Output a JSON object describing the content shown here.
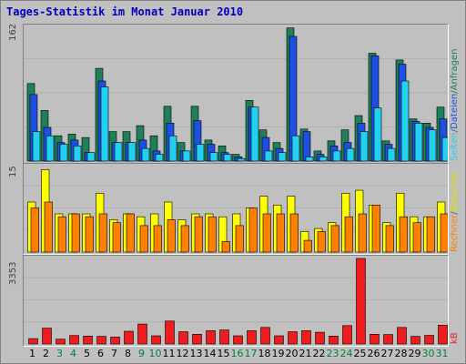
{
  "title": "Tages-Statistik im Monat Januar 2010",
  "legend": {
    "panel1": [
      {
        "label": "Anfragen",
        "color": "#1f7f57"
      },
      {
        "label": "Dateien",
        "color": "#1f4fe0"
      },
      {
        "label": "Seiten",
        "color": "#22d0f0"
      }
    ],
    "panel2": [
      {
        "label": "Besuche",
        "color": "#ffff00"
      },
      {
        "label": "Rechner",
        "color": "#ff8000"
      }
    ],
    "panel3": [
      {
        "label": "kB",
        "color": "#ee1c1c"
      }
    ]
  },
  "colors": {
    "background": "#c0c0c0",
    "title": "#0000c0",
    "weekday_label": "#000000",
    "weekend_label": "#008040"
  },
  "chart_data": [
    {
      "type": "bar",
      "title": "Tages-Statistik im Monat Januar 2010",
      "categories": [
        "1",
        "2",
        "3",
        "4",
        "5",
        "6",
        "7",
        "8",
        "9",
        "10",
        "11",
        "12",
        "13",
        "14",
        "15",
        "16",
        "17",
        "18",
        "19",
        "20",
        "21",
        "22",
        "23",
        "24",
        "25",
        "26",
        "27",
        "28",
        "29",
        "30",
        "31"
      ],
      "weekend": [
        false,
        false,
        true,
        true,
        false,
        false,
        false,
        false,
        true,
        true,
        false,
        false,
        false,
        false,
        false,
        true,
        true,
        false,
        false,
        false,
        false,
        false,
        true,
        true,
        false,
        false,
        false,
        false,
        false,
        true,
        true
      ],
      "ymax_label": "162",
      "ylim": [
        0,
        162
      ],
      "series": [
        {
          "name": "Anfragen",
          "values": [
            92,
            60,
            30,
            32,
            28,
            110,
            35,
            35,
            42,
            30,
            65,
            22,
            65,
            25,
            18,
            8,
            72,
            37,
            22,
            158,
            38,
            12,
            24,
            37,
            54,
            128,
            24,
            120,
            50,
            45,
            64
          ]
        },
        {
          "name": "Dateien",
          "values": [
            79,
            40,
            22,
            25,
            10,
            95,
            22,
            22,
            25,
            12,
            45,
            12,
            48,
            20,
            10,
            5,
            64,
            28,
            15,
            148,
            35,
            8,
            18,
            22,
            45,
            125,
            20,
            115,
            47,
            40,
            50
          ]
        },
        {
          "name": "Seiten",
          "values": [
            35,
            30,
            20,
            18,
            10,
            88,
            22,
            22,
            15,
            8,
            30,
            12,
            20,
            10,
            8,
            3,
            64,
            12,
            10,
            30,
            5,
            5,
            12,
            15,
            35,
            63,
            15,
            95,
            45,
            37,
            28
          ]
        }
      ]
    },
    {
      "type": "bar",
      "categories": [
        "1",
        "2",
        "3",
        "4",
        "5",
        "6",
        "7",
        "8",
        "9",
        "10",
        "11",
        "12",
        "13",
        "14",
        "15",
        "16",
        "17",
        "18",
        "19",
        "20",
        "21",
        "22",
        "23",
        "24",
        "25",
        "26",
        "27",
        "28",
        "29",
        "30",
        "31"
      ],
      "ymax_label": "15",
      "ylim": [
        0,
        15
      ],
      "series": [
        {
          "name": "Besuche",
          "values": [
            8.5,
            14,
            6.5,
            6.5,
            6.5,
            10,
            5.5,
            6.5,
            6,
            6.5,
            8.5,
            5.5,
            6.5,
            6.5,
            6,
            6.5,
            7.5,
            9.5,
            8,
            9.5,
            3.5,
            4,
            5,
            10,
            10.5,
            8,
            5,
            10,
            6,
            6,
            8.5
          ]
        },
        {
          "name": "Rechner",
          "values": [
            7.5,
            8.5,
            6,
            6.5,
            6,
            6.5,
            5,
            6.5,
            4.5,
            4.5,
            5.5,
            4.5,
            6,
            6,
            1.8,
            4.5,
            7.5,
            6.5,
            6.5,
            6.5,
            2,
            3.5,
            4.5,
            6,
            6.5,
            8,
            4.5,
            6,
            5,
            6,
            6.5
          ]
        }
      ]
    },
    {
      "type": "bar",
      "categories": [
        "1",
        "2",
        "3",
        "4",
        "5",
        "6",
        "7",
        "8",
        "9",
        "10",
        "11",
        "12",
        "13",
        "14",
        "15",
        "16",
        "17",
        "18",
        "19",
        "20",
        "21",
        "22",
        "23",
        "24",
        "25",
        "26",
        "27",
        "28",
        "29",
        "30",
        "31"
      ],
      "ymax_label": "3353",
      "ylim": [
        0,
        3353
      ],
      "series": [
        {
          "name": "kB",
          "values": [
            210,
            620,
            190,
            330,
            310,
            300,
            270,
            500,
            780,
            320,
            900,
            480,
            380,
            520,
            550,
            320,
            520,
            650,
            320,
            480,
            520,
            460,
            310,
            720,
            3353,
            380,
            370,
            650,
            300,
            340,
            740
          ]
        }
      ]
    }
  ]
}
